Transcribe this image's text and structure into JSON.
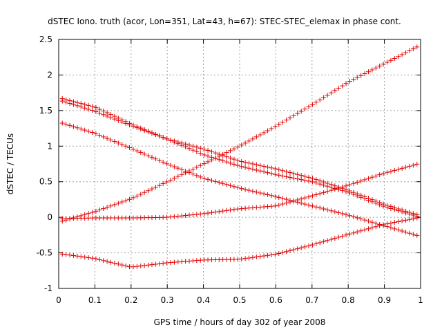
{
  "chart_data": {
    "type": "scatter",
    "title": "dSTEC Iono. truth (acor, Lon=351, Lat=43, h=67): STEC-STEC_elemax in phase cont.",
    "xlabel": "GPS time / hours of day 302 of year 2008",
    "ylabel": "dSTEC  / TECUs",
    "xlim": [
      0,
      1
    ],
    "ylim": [
      -1,
      2.5
    ],
    "xticks": [
      "0",
      "0.1",
      "0.2",
      "0.3",
      "0.4",
      "0.5",
      "0.6",
      "0.7",
      "0.8",
      "0.9",
      "1"
    ],
    "yticks": [
      "-1",
      "-0.5",
      "0",
      "0.5",
      "1",
      "1.5",
      "2",
      "2.5"
    ],
    "grid": true,
    "marker": "plus",
    "color": "#e00000",
    "series": [
      {
        "x": [
          0.0,
          0.1,
          0.2,
          0.3,
          0.4,
          0.5,
          0.6,
          0.7,
          0.8,
          0.9,
          1.0
        ],
        "values": [
          -0.07,
          0.08,
          0.26,
          0.5,
          0.75,
          1.0,
          1.28,
          1.58,
          1.9,
          2.16,
          2.42
        ]
      },
      {
        "x": [
          0.0,
          0.1,
          0.2,
          0.3,
          0.4,
          0.5,
          0.6,
          0.7,
          0.8,
          0.9,
          1.0
        ],
        "values": [
          -0.02,
          -0.01,
          -0.01,
          0.0,
          0.05,
          0.12,
          0.16,
          0.3,
          0.45,
          0.62,
          0.76
        ]
      },
      {
        "x": [
          0.0,
          0.1,
          0.2,
          0.3,
          0.4,
          0.5,
          0.6,
          0.7,
          0.8,
          0.9,
          1.0
        ],
        "values": [
          -0.51,
          -0.58,
          -0.7,
          -0.64,
          -0.6,
          -0.59,
          -0.52,
          -0.39,
          -0.24,
          -0.1,
          0.0
        ]
      },
      {
        "x": [
          0.0,
          0.1,
          0.2,
          0.3,
          0.4,
          0.5,
          0.6,
          0.7,
          0.8,
          0.9,
          1.0
        ],
        "values": [
          1.34,
          1.18,
          0.97,
          0.75,
          0.55,
          0.41,
          0.29,
          0.16,
          0.03,
          -0.12,
          -0.27
        ]
      },
      {
        "x": [
          0.0,
          0.1,
          0.2,
          0.3,
          0.4,
          0.5,
          0.6,
          0.7,
          0.8,
          0.9,
          1.0
        ],
        "values": [
          1.65,
          1.49,
          1.29,
          1.1,
          0.88,
          0.72,
          0.6,
          0.5,
          0.35,
          0.15,
          0.0
        ]
      },
      {
        "x": [
          0.0,
          0.1,
          0.2,
          0.3,
          0.4,
          0.5,
          0.6,
          0.7,
          0.8,
          0.9,
          1.0
        ],
        "values": [
          1.68,
          1.55,
          1.31,
          1.1,
          0.96,
          0.79,
          0.68,
          0.55,
          0.38,
          0.18,
          0.02
        ]
      }
    ]
  }
}
